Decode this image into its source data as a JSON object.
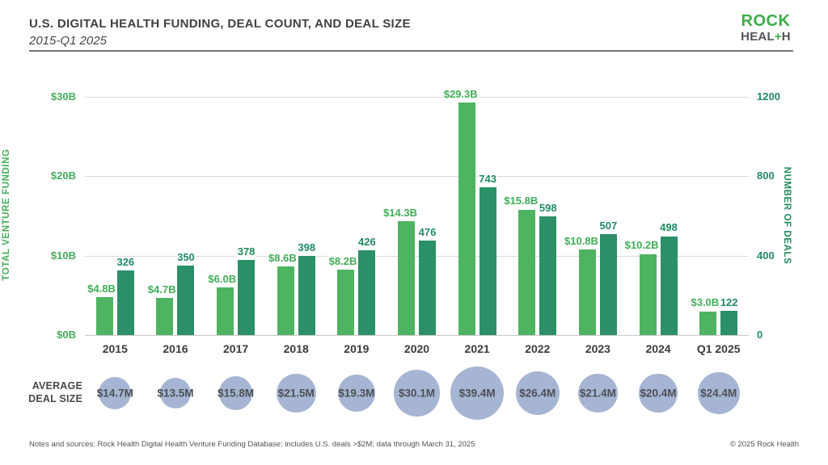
{
  "header": {
    "title": "U.S. DIGITAL HEALTH FUNDING, DEAL COUNT, AND DEAL SIZE",
    "subtitle": "2015-Q1 2025",
    "logo": {
      "line1": "ROCK",
      "line2_pre": "HEAL",
      "line2_plus": "+",
      "line2_post": "H"
    }
  },
  "colors": {
    "funding_bar": "#4eb462",
    "deals_bar": "#2b8f68",
    "funding_text": "#3fae57",
    "deals_text": "#1f8b60",
    "bubble_fill": "#a6b5d3",
    "grid": "#dadada",
    "title_text": "#3e4245",
    "logo_green": "#3bae49",
    "logo_gray": "#53555a"
  },
  "chart_data": {
    "type": "bar",
    "title": "U.S. DIGITAL HEALTH FUNDING, DEAL COUNT, AND DEAL SIZE",
    "subtitle": "2015-Q1 2025",
    "categories": [
      "2015",
      "2016",
      "2017",
      "2018",
      "2019",
      "2020",
      "2021",
      "2022",
      "2023",
      "2024",
      "Q1 2025"
    ],
    "series": [
      {
        "name": "Total venture funding ($B)",
        "values": [
          4.8,
          4.7,
          6.0,
          8.6,
          8.2,
          14.3,
          29.3,
          15.8,
          10.8,
          10.2,
          3.0
        ],
        "labels": [
          "$4.8B",
          "$4.7B",
          "$6.0B",
          "$8.6B",
          "$8.2B",
          "$14.3B",
          "$29.3B",
          "$15.8B",
          "$10.8B",
          "$10.2B",
          "$3.0B"
        ]
      },
      {
        "name": "Number of deals",
        "values": [
          326,
          350,
          378,
          398,
          426,
          476,
          743,
          598,
          507,
          498,
          122
        ],
        "labels": [
          "326",
          "350",
          "378",
          "398",
          "426",
          "476",
          "743",
          "598",
          "507",
          "498",
          "122"
        ]
      }
    ],
    "left_axis": {
      "label": "TOTAL VENTURE FUNDING",
      "ticks": [
        "$0B",
        "$10B",
        "$20B",
        "$30B"
      ],
      "tick_values": [
        0,
        10,
        20,
        30
      ],
      "range": [
        0,
        30
      ]
    },
    "right_axis": {
      "label": "NUMBER OF DEALS",
      "ticks": [
        "0",
        "400",
        "800",
        "1200"
      ],
      "tick_values": [
        0,
        400,
        800,
        1200
      ],
      "range": [
        0,
        1200
      ]
    },
    "grid": true,
    "legend": "none",
    "bubbles": {
      "label_line1": "AVERAGE",
      "label_line2": "DEAL SIZE",
      "values": [
        14.7,
        13.5,
        15.8,
        21.5,
        19.3,
        30.1,
        39.4,
        26.4,
        21.4,
        20.4,
        24.4
      ],
      "labels": [
        "$14.7M",
        "$13.5M",
        "$15.8M",
        "$21.5M",
        "$19.3M",
        "$30.1M",
        "$39.4M",
        "$26.4M",
        "$21.4M",
        "$20.4M",
        "$24.4M"
      ]
    }
  },
  "footer": {
    "notes": "Notes and sources: Rock Health Digital Health Venture Funding Database; includes U.S. deals >$2M; data through March 31, 2025",
    "copyright": "© 2025 Rock Health"
  }
}
